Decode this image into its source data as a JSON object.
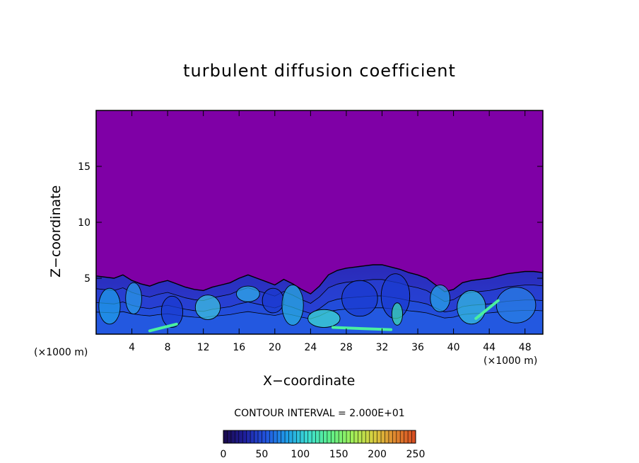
{
  "chart_data": {
    "type": "heatmap",
    "title": "turbulent diffusion coefficient",
    "xlabel": "X−coordinate",
    "ylabel": "Z−coordinate",
    "x_unit_left": "(×1000 m)",
    "x_unit_right": "(×1000 m)",
    "xlim": [
      0,
      50
    ],
    "ylim": [
      0,
      20
    ],
    "x_ticks": [
      "4",
      "8",
      "12",
      "16",
      "20",
      "24",
      "28",
      "32",
      "36",
      "40",
      "44",
      "48"
    ],
    "y_ticks": [
      "5",
      "10",
      "15"
    ],
    "contour_interval": "CONTOUR INTERVAL = 2.000E+01",
    "colorbar": {
      "range": [
        0,
        250
      ],
      "tick_labels": [
        "0",
        "50",
        "100",
        "150",
        "200",
        "250"
      ],
      "colors": [
        "#1a0a4a",
        "#1f1f9e",
        "#2255e0",
        "#1fa0e8",
        "#3ee0d0",
        "#5ef08a",
        "#9ef05a",
        "#d8d040",
        "#e08a30",
        "#d84a20"
      ]
    },
    "background_color": "#7f00a6",
    "boundary_layer_top_x": [
      0,
      2,
      3,
      4,
      5,
      6,
      7,
      8,
      9,
      10,
      11,
      12,
      13,
      14,
      15,
      16,
      17,
      18,
      19,
      20,
      21,
      22,
      23,
      24,
      25,
      26,
      27,
      28,
      29,
      30,
      31,
      32,
      33,
      34,
      35,
      36,
      37,
      38,
      39,
      40,
      41,
      42,
      43,
      44,
      45,
      46,
      47,
      48,
      49,
      50
    ],
    "boundary_layer_top_z": [
      5.2,
      5.0,
      5.3,
      4.8,
      4.5,
      4.3,
      4.6,
      4.8,
      4.5,
      4.2,
      4.0,
      3.9,
      4.2,
      4.4,
      4.6,
      5.0,
      5.3,
      5.0,
      4.7,
      4.4,
      4.9,
      4.5,
      4.0,
      3.6,
      4.3,
      5.3,
      5.7,
      5.9,
      6.0,
      6.1,
      6.2,
      6.2,
      6.0,
      5.8,
      5.5,
      5.3,
      5.0,
      4.4,
      3.8,
      4.0,
      4.6,
      4.8,
      4.9,
      5.0,
      5.2,
      5.4,
      5.5,
      5.6,
      5.6,
      5.5
    ],
    "grid": false
  }
}
